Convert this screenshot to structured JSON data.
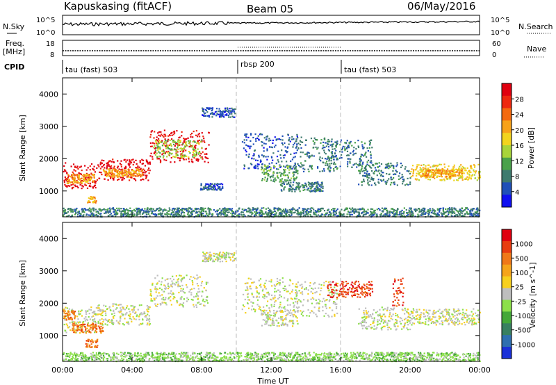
{
  "header": {
    "station": "Kapuskasing (fitACF)",
    "beam": "Beam 05",
    "date": "06/May/2016"
  },
  "noise_panel": {
    "left_label": "N.Sky",
    "right_label": "N.Search",
    "tick_top": "10^5",
    "tick_bottom": "10^0"
  },
  "freq_panel": {
    "left_label_1": "Freq.",
    "left_label_2": "[MHz]",
    "right_label": "Nave",
    "left_ticks": [
      "18",
      "8"
    ],
    "right_ticks": [
      "60",
      "0"
    ]
  },
  "cpid": {
    "label": "CPID",
    "segments": [
      {
        "name": "tau (fast) 503",
        "start_h": 0,
        "end_h": 10
      },
      {
        "name": "rbsp 200",
        "start_h": 10,
        "end_h": 16
      },
      {
        "name": "tau (fast) 503",
        "start_h": 16,
        "end_h": 24
      }
    ]
  },
  "x_axis": {
    "label": "Time UT",
    "ticks": [
      "00:00",
      "04:00",
      "08:00",
      "12:00",
      "16:00",
      "20:00",
      "00:00"
    ]
  },
  "chart_data": [
    {
      "type": "heatmap",
      "name": "power",
      "ylabel": "Slant Range [km]",
      "yticks": [
        "1000",
        "2000",
        "3000",
        "4000"
      ],
      "ylim": [
        200,
        4500
      ],
      "xlim_hours": [
        0,
        24
      ],
      "colorbar_label": "Power [dB]",
      "colorbar_ticks": [
        "4",
        "8",
        "12",
        "16",
        "20",
        "24",
        "28"
      ],
      "colorbar_colors": [
        "#1010f0",
        "#2050b8",
        "#3e7a6e",
        "#4aa14a",
        "#a8d43a",
        "#f2d41e",
        "#f7a21a",
        "#f46a10",
        "#ee2810",
        "#e00010"
      ],
      "bands": [
        {
          "h0": 0.0,
          "h1": 2.0,
          "r0": 1100,
          "r1": 1900,
          "c": 9
        },
        {
          "h0": 0.2,
          "h1": 1.8,
          "r0": 1250,
          "r1": 1550,
          "c": 6
        },
        {
          "h0": 1.4,
          "h1": 1.9,
          "r0": 650,
          "r1": 850,
          "c": 6
        },
        {
          "h0": 2.0,
          "h1": 5.0,
          "r0": 1350,
          "r1": 2000,
          "c": 9
        },
        {
          "h0": 2.3,
          "h1": 4.6,
          "r0": 1450,
          "r1": 1700,
          "c": 6
        },
        {
          "h0": 5.0,
          "h1": 8.4,
          "r0": 1900,
          "r1": 2900,
          "c": 9
        },
        {
          "h0": 5.2,
          "h1": 8.0,
          "r0": 2050,
          "r1": 2600,
          "c": 4
        },
        {
          "h0": 8.0,
          "h1": 9.9,
          "r0": 3300,
          "r1": 3600,
          "c": 1
        },
        {
          "h0": 7.9,
          "h1": 9.2,
          "r0": 1050,
          "r1": 1250,
          "c": 1
        },
        {
          "h0": 10.3,
          "h1": 13.5,
          "r0": 1700,
          "r1": 2800,
          "c": 1
        },
        {
          "h0": 11.4,
          "h1": 13.5,
          "r0": 1300,
          "r1": 1800,
          "c": 3
        },
        {
          "h0": 12.5,
          "h1": 15.0,
          "r0": 1000,
          "r1": 1300,
          "c": 2
        },
        {
          "h0": 13.4,
          "h1": 15.8,
          "r0": 1600,
          "r1": 2700,
          "c": 2
        },
        {
          "h0": 15.2,
          "h1": 17.8,
          "r0": 1700,
          "r1": 2600,
          "c": 2
        },
        {
          "h0": 17.0,
          "h1": 20.0,
          "r0": 1200,
          "r1": 1900,
          "c": 2
        },
        {
          "h0": 20.0,
          "h1": 24.0,
          "r0": 1350,
          "r1": 1850,
          "c": 5
        },
        {
          "h0": 20.5,
          "h1": 23.0,
          "r0": 1450,
          "r1": 1700,
          "c": 6
        },
        {
          "h0": 0.0,
          "h1": 24.0,
          "r0": 220,
          "r1": 500,
          "c": 2
        }
      ]
    },
    {
      "type": "heatmap",
      "name": "velocity",
      "ylabel": "Slant Range [km]",
      "yticks": [
        "1000",
        "2000",
        "3000",
        "4000"
      ],
      "ylim": [
        200,
        4500
      ],
      "xlim_hours": [
        0,
        24
      ],
      "colorbar_label": "Velocity [m s^-1]",
      "colorbar_ticks": [
        "1000",
        "500",
        "100",
        "25",
        "-25",
        "-100",
        "-500",
        "-1000"
      ],
      "colorbar_colors": [
        "#1a30d8",
        "#2e6fb0",
        "#388060",
        "#44a838",
        "#8ce04a",
        "#bebebe",
        "#f7d01e",
        "#f6a41a",
        "#f07818",
        "#e83c10",
        "#e00010"
      ],
      "bands": [
        {
          "h0": 0.0,
          "h1": 2.0,
          "r0": 1100,
          "r1": 1900,
          "c": 5
        },
        {
          "h0": 0.0,
          "h1": 0.7,
          "r0": 1500,
          "r1": 1800,
          "c": 8
        },
        {
          "h0": 0.5,
          "h1": 2.3,
          "r0": 1100,
          "r1": 1400,
          "c": 8
        },
        {
          "h0": 1.3,
          "h1": 2.0,
          "r0": 650,
          "r1": 900,
          "c": 8
        },
        {
          "h0": 2.0,
          "h1": 5.0,
          "r0": 1350,
          "r1": 2000,
          "c": 5
        },
        {
          "h0": 5.0,
          "h1": 8.4,
          "r0": 1900,
          "r1": 2900,
          "c": 5
        },
        {
          "h0": 8.0,
          "h1": 9.9,
          "r0": 3300,
          "r1": 3600,
          "c": 5
        },
        {
          "h0": 10.3,
          "h1": 13.5,
          "r0": 1700,
          "r1": 2800,
          "c": 5
        },
        {
          "h0": 11.4,
          "h1": 13.5,
          "r0": 1300,
          "r1": 1800,
          "c": 5
        },
        {
          "h0": 13.4,
          "h1": 15.8,
          "r0": 1600,
          "r1": 2700,
          "c": 5
        },
        {
          "h0": 15.2,
          "h1": 17.8,
          "r0": 2200,
          "r1": 2700,
          "c": 9
        },
        {
          "h0": 17.0,
          "h1": 20.0,
          "r0": 1200,
          "r1": 1900,
          "c": 5
        },
        {
          "h0": 18.9,
          "h1": 19.6,
          "r0": 1900,
          "r1": 2800,
          "c": 9
        },
        {
          "h0": 20.0,
          "h1": 24.0,
          "r0": 1350,
          "r1": 1850,
          "c": 5
        },
        {
          "h0": 0.0,
          "h1": 24.0,
          "r0": 220,
          "r1": 500,
          "c": 4
        }
      ]
    }
  ]
}
